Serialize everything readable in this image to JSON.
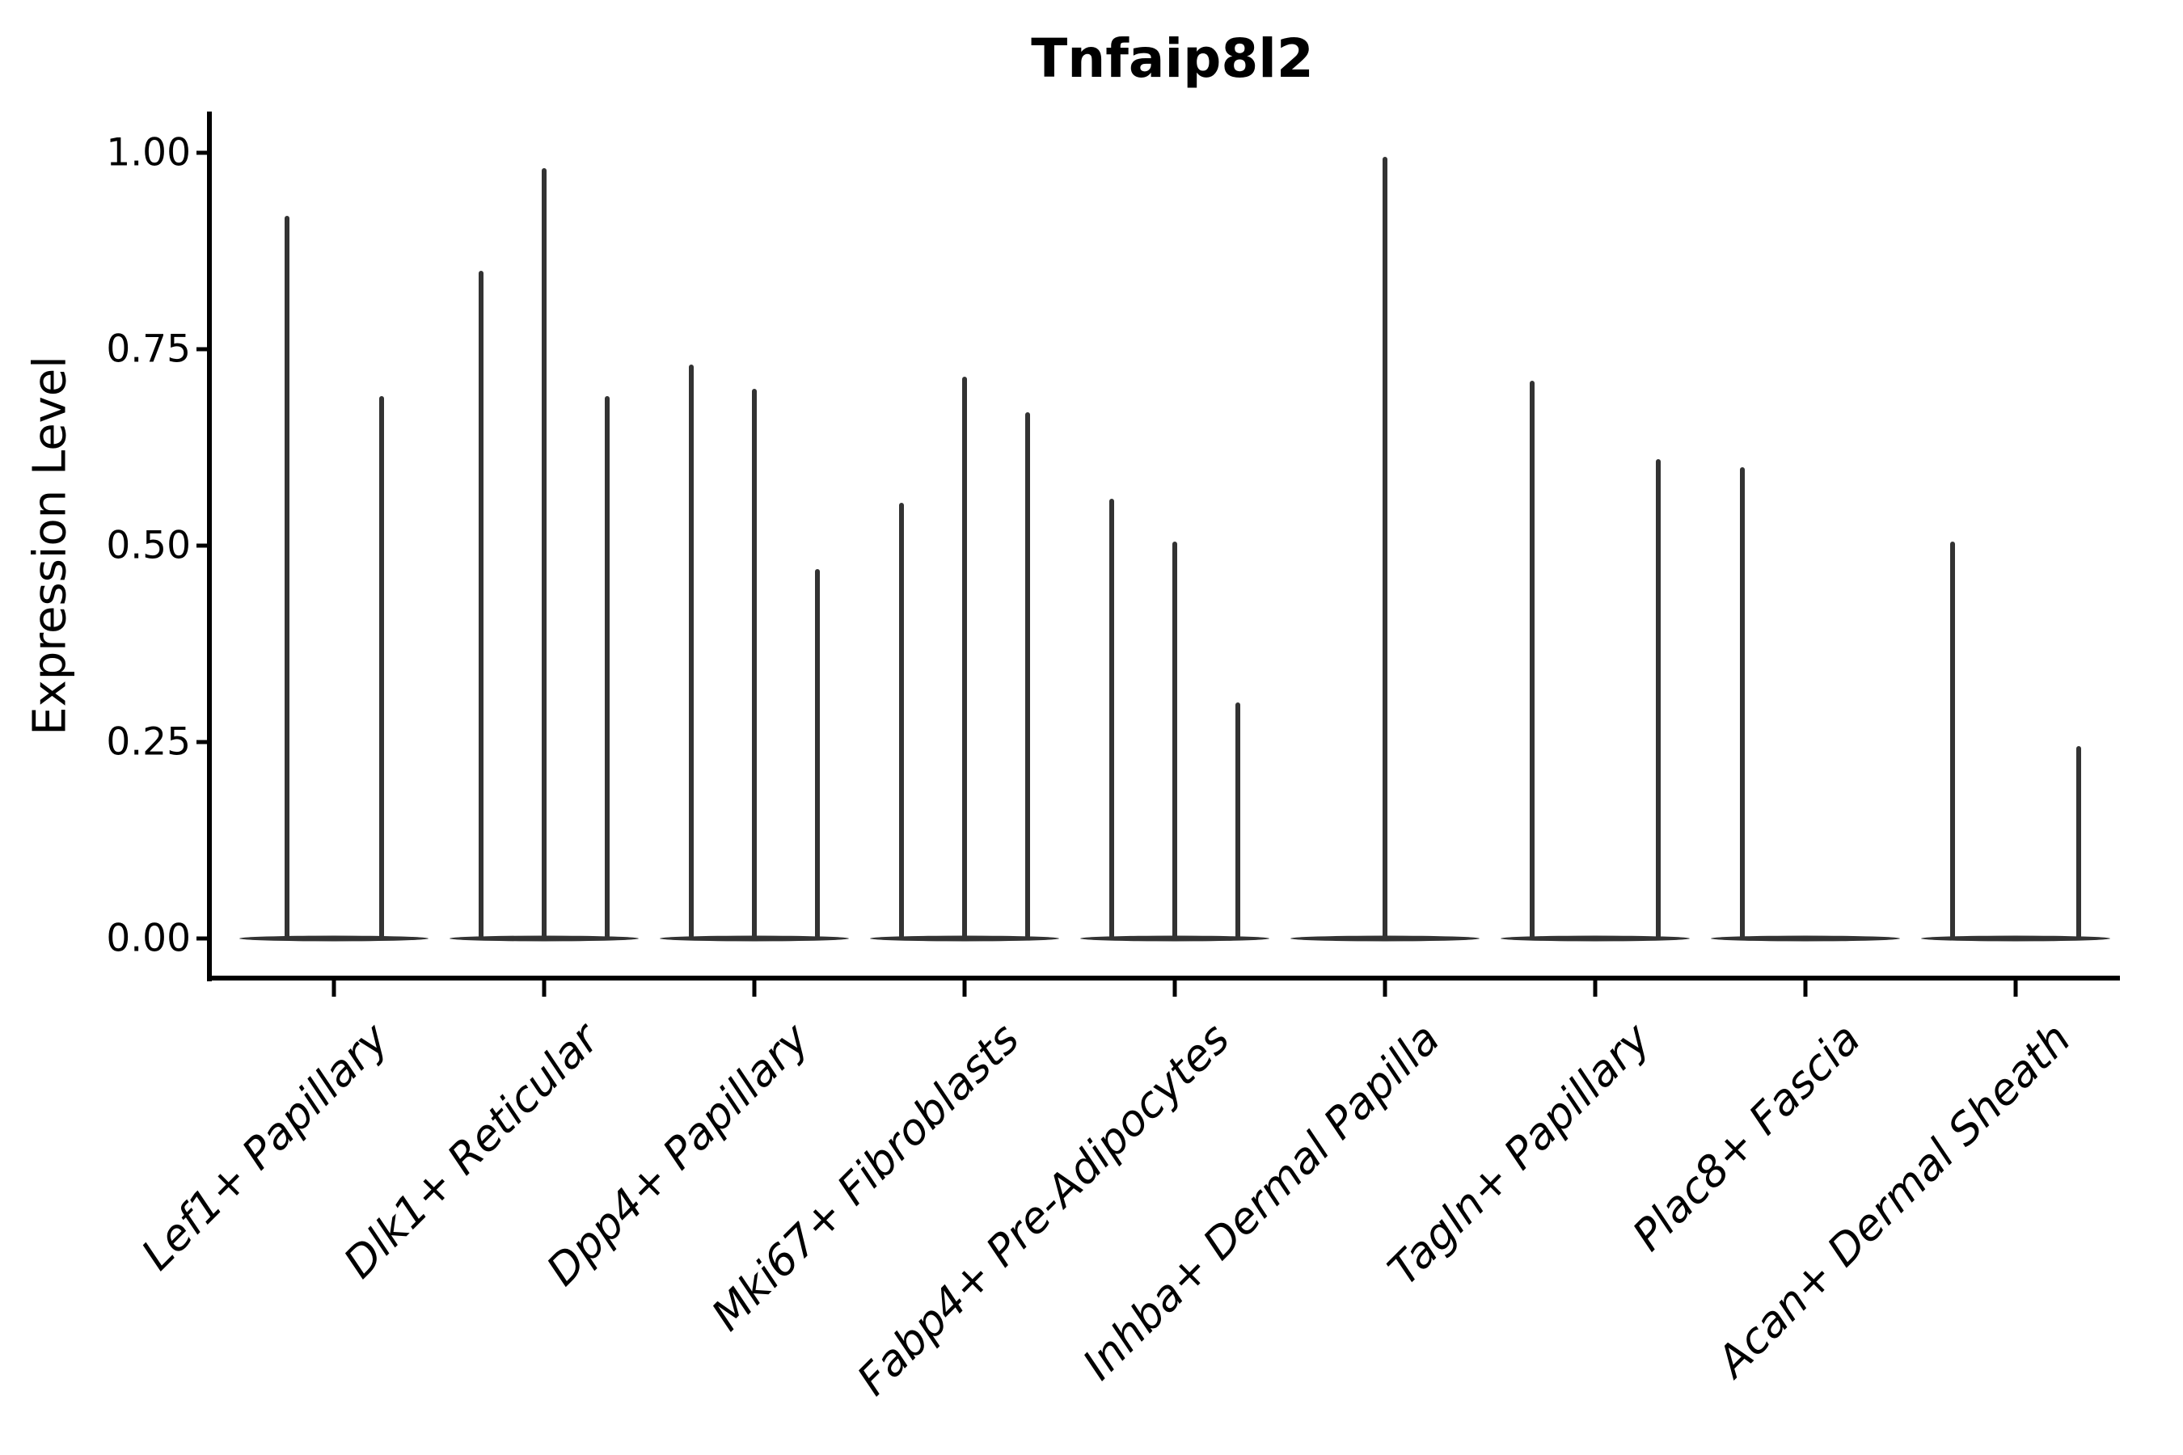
{
  "title": "Tnfaip8l2",
  "y_axis": {
    "label": "Expression Level",
    "tick_labels": [
      "1.00",
      "0.75",
      "0.50",
      "0.25",
      "0.00"
    ],
    "tick_values": [
      1.0,
      0.75,
      0.5,
      0.25,
      0.0
    ]
  },
  "x_axis": {
    "categories": [
      "Lef1+ Papillary",
      "Dlk1+ Reticular",
      "Dpp4+ Papillary",
      "Mki67+ Fibroblasts",
      "Fabp4+ Pre-Adipocytes",
      "Inhba+ Dermal Papilla",
      "Tagln+ Papillary",
      "Plac8+ Fascia",
      "Acan+ Dermal Sheath"
    ]
  },
  "chart_data": {
    "type": "violin",
    "title": "Tnfaip8l2",
    "xlabel": "",
    "ylabel": "Expression Level",
    "ylim": [
      -0.05,
      1.05
    ],
    "y_ticks": [
      0.0,
      0.25,
      0.5,
      0.75,
      1.0
    ],
    "grid": false,
    "legend": false,
    "group_total_width": 0.9,
    "categories": [
      "Lef1+ Papillary",
      "Dlk1+ Reticular",
      "Dpp4+ Papillary",
      "Mki67+ Fibroblasts",
      "Fabp4+ Pre-Adipocytes",
      "Inhba+ Dermal Papilla",
      "Tagln+ Papillary",
      "Plac8+ Fascia",
      "Acan+ Dermal Sheath"
    ],
    "groups": [
      {
        "category": "Lef1+ Papillary",
        "violins": [
          {
            "offset": -0.225,
            "peak": 0.92
          },
          {
            "offset": 0.225,
            "peak": 0.69
          }
        ]
      },
      {
        "category": "Dlk1+ Reticular",
        "violins": [
          {
            "offset": -0.3,
            "peak": 0.85
          },
          {
            "offset": 0.0,
            "peak": 0.98
          },
          {
            "offset": 0.3,
            "peak": 0.69
          }
        ]
      },
      {
        "category": "Dpp4+ Papillary",
        "violins": [
          {
            "offset": -0.3,
            "peak": 0.73
          },
          {
            "offset": 0.0,
            "peak": 0.7
          },
          {
            "offset": 0.3,
            "peak": 0.47
          }
        ]
      },
      {
        "category": "Mki67+ Fibroblasts",
        "violins": [
          {
            "offset": -0.3,
            "peak": 0.555
          },
          {
            "offset": 0.0,
            "peak": 0.715
          },
          {
            "offset": 0.3,
            "peak": 0.67
          }
        ]
      },
      {
        "category": "Fabp4+ Pre-Adipocytes",
        "violins": [
          {
            "offset": -0.3,
            "peak": 0.56
          },
          {
            "offset": 0.0,
            "peak": 0.505
          },
          {
            "offset": 0.3,
            "peak": 0.3
          }
        ]
      },
      {
        "category": "Inhba+ Dermal Papilla",
        "violins": [
          {
            "offset": -0.3,
            "peak": 0.0
          },
          {
            "offset": 0.0,
            "peak": 0.995
          },
          {
            "offset": 0.3,
            "peak": 0.0
          }
        ]
      },
      {
        "category": "Tagln+ Papillary",
        "violins": [
          {
            "offset": -0.3,
            "peak": 0.71
          },
          {
            "offset": 0.0,
            "peak": 0.0
          },
          {
            "offset": 0.3,
            "peak": 0.61
          }
        ]
      },
      {
        "category": "Plac8+ Fascia",
        "violins": [
          {
            "offset": -0.3,
            "peak": 0.6
          },
          {
            "offset": 0.0,
            "peak": 0.0
          },
          {
            "offset": 0.3,
            "peak": 0.0
          }
        ]
      },
      {
        "category": "Acan+ Dermal Sheath",
        "violins": [
          {
            "offset": -0.3,
            "peak": 0.505
          },
          {
            "offset": 0.0,
            "peak": 0.0
          },
          {
            "offset": 0.3,
            "peak": 0.245
          }
        ]
      }
    ],
    "style": {
      "violin_color": "#333333",
      "axis_color": "#000000",
      "background": "#ffffff"
    }
  }
}
